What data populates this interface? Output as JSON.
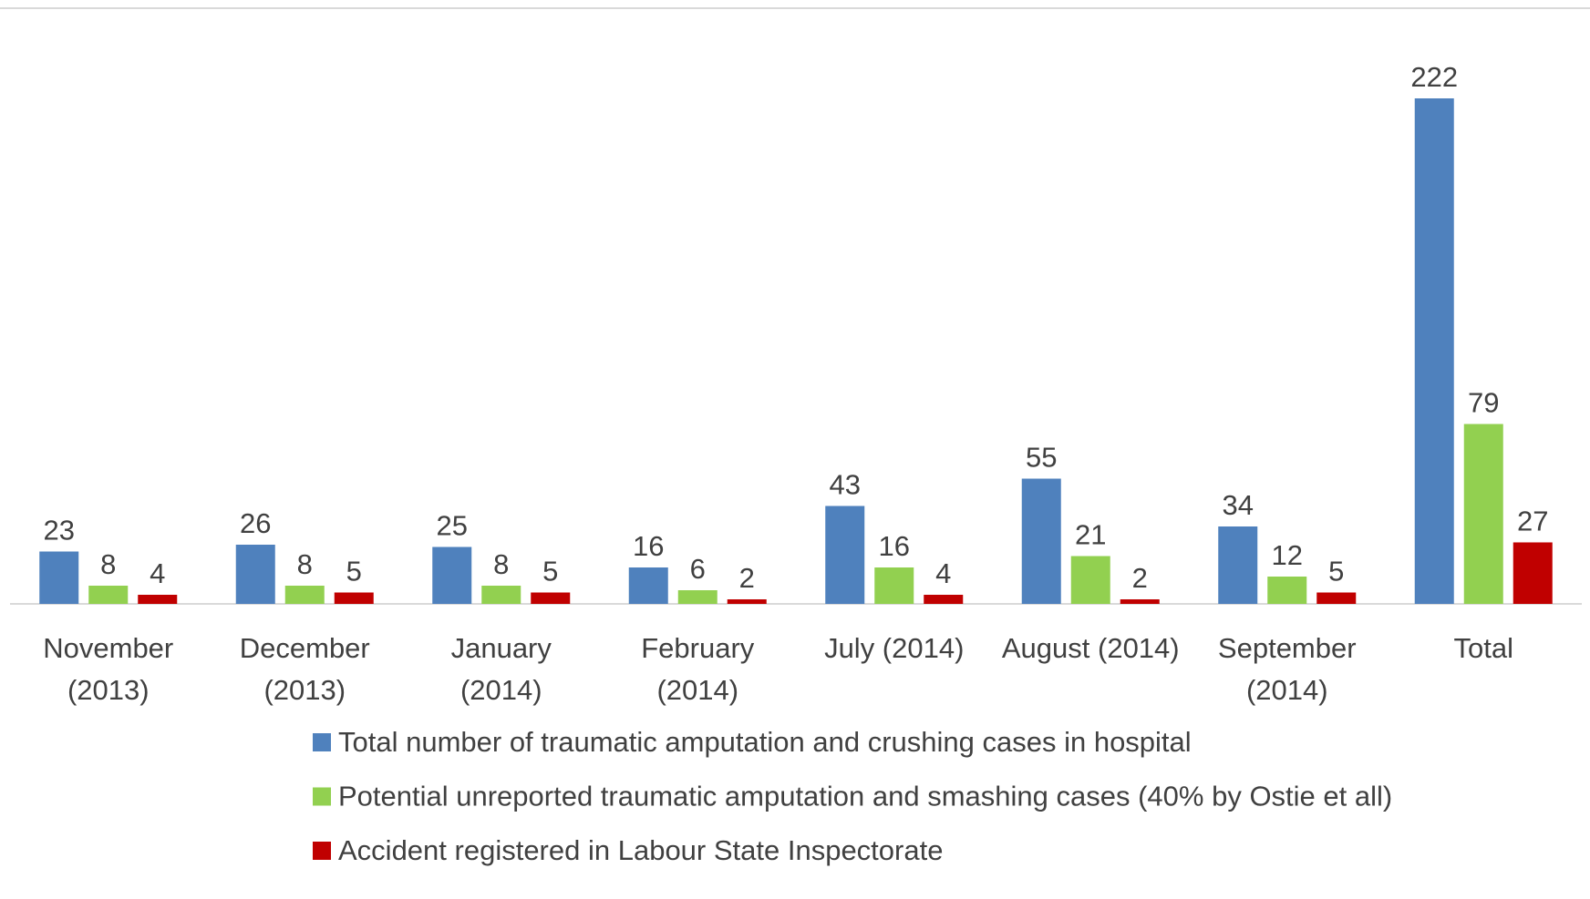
{
  "chart_data": {
    "type": "bar",
    "categories": [
      "November (2013)",
      "December (2013)",
      "January (2014)",
      "February (2014)",
      "July (2014)",
      "August (2014)",
      "September (2014)",
      "Total"
    ],
    "series": [
      {
        "name": "Total number of traumatic amputation and crushing cases in hospital",
        "color": "#4f81bd",
        "values": [
          23,
          26,
          25,
          16,
          43,
          55,
          34,
          222
        ]
      },
      {
        "name": "Potential unreported traumatic amputation and smashing cases (40% by Ostie et all)",
        "color": "#92d050",
        "values": [
          8,
          8,
          8,
          6,
          16,
          21,
          12,
          79
        ]
      },
      {
        "name": "Accident registered in Labour State Inspectorate",
        "color": "#c00000",
        "values": [
          4,
          5,
          5,
          2,
          4,
          2,
          5,
          27
        ]
      }
    ],
    "ylim": [
      0,
      260
    ],
    "legend": "bottom"
  }
}
